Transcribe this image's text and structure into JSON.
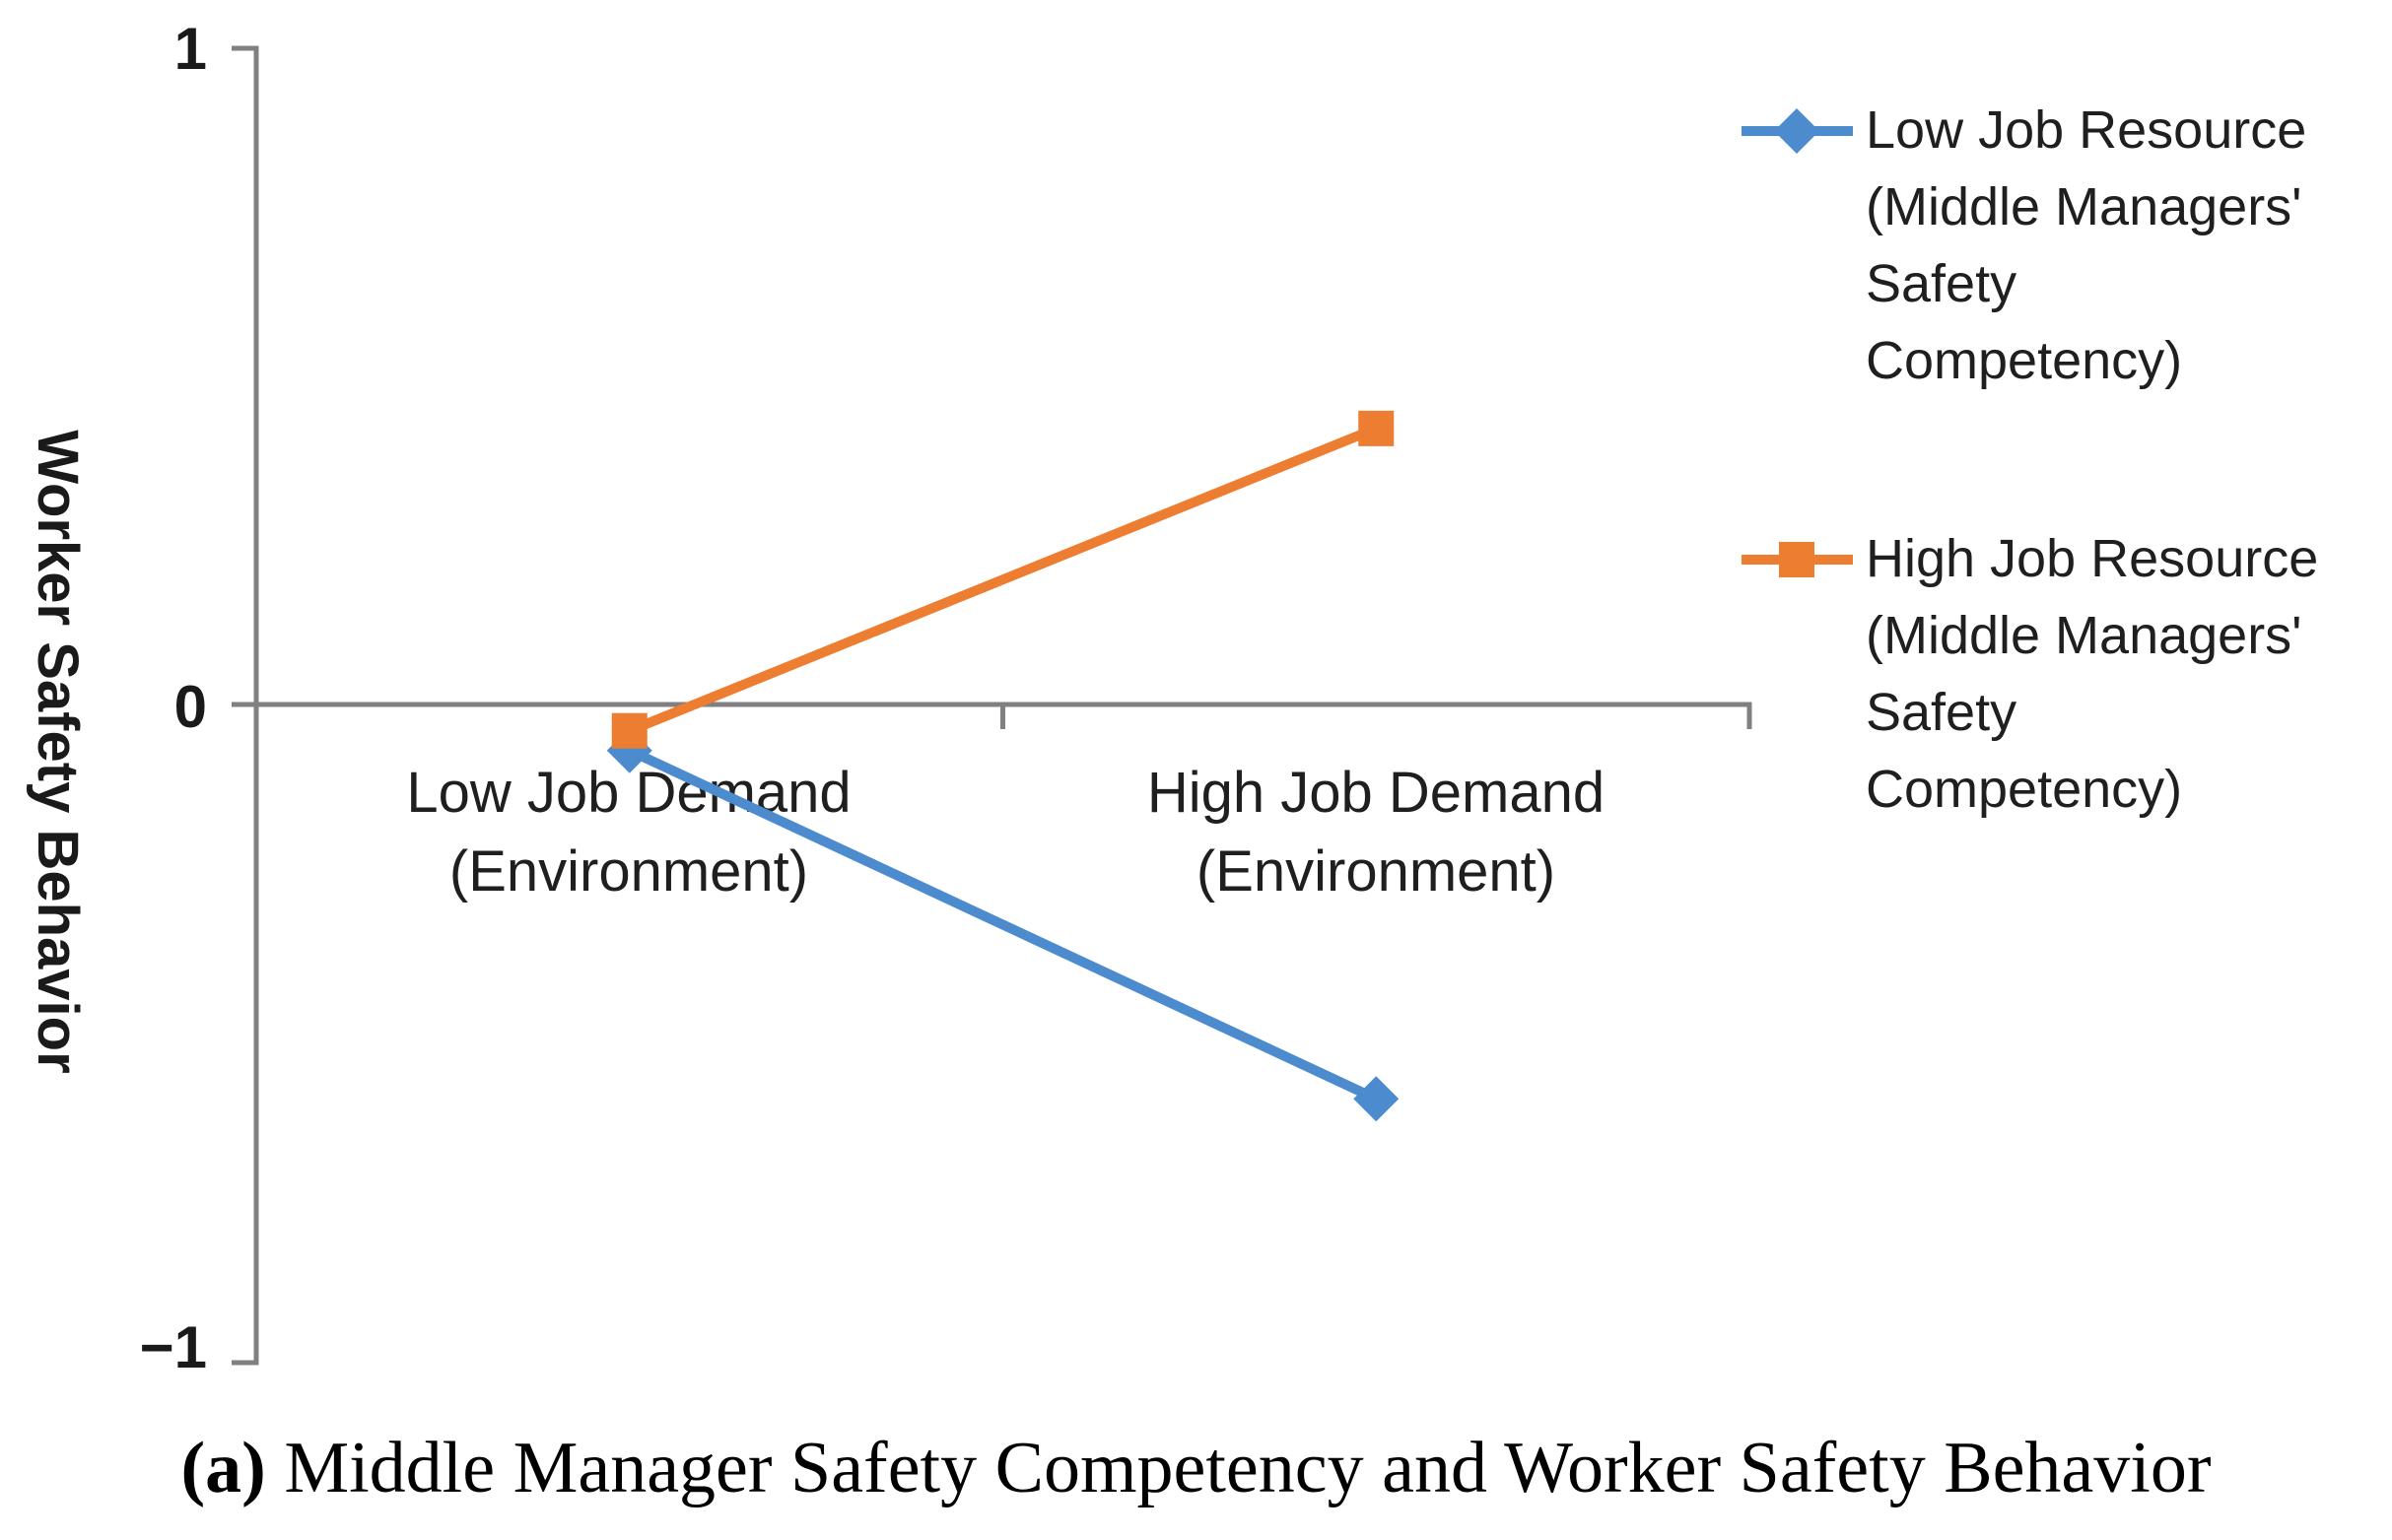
{
  "chart_data": {
    "type": "line",
    "title": "",
    "xlabel": "",
    "ylabel": "Worker Safety Behavior",
    "ylim": [
      -1,
      1
    ],
    "yticks": [
      1,
      0,
      -1
    ],
    "ytick_labels": [
      "1",
      "0",
      "−1"
    ],
    "grid": false,
    "legend_position": "right",
    "axis_color": "#808080",
    "categories": [
      {
        "line1": "Low Job Demand",
        "line2": "(Environment)"
      },
      {
        "line1": "High Job Demand",
        "line2": "(Environment)"
      }
    ],
    "series": [
      {
        "name": "Low Job Resource (Middle Managers' Safety Competency)",
        "legend_lines": [
          "Low Job Resource",
          "(Middle Managers'",
          "Safety",
          "Competency)"
        ],
        "marker": "diamond",
        "color": "#4B8BCE",
        "values": [
          -0.07,
          -0.6
        ]
      },
      {
        "name": "High Job Resource (Middle Managers' Safety Competency)",
        "legend_lines": [
          "High Job Resource",
          "(Middle Managers'",
          "Safety",
          "Competency)"
        ],
        "marker": "square",
        "color": "#ED7D31",
        "values": [
          -0.04,
          0.42
        ]
      }
    ]
  },
  "caption": {
    "label": "(a)",
    "text": "Middle Manager Safety Competency and Worker Safety Behavior"
  }
}
